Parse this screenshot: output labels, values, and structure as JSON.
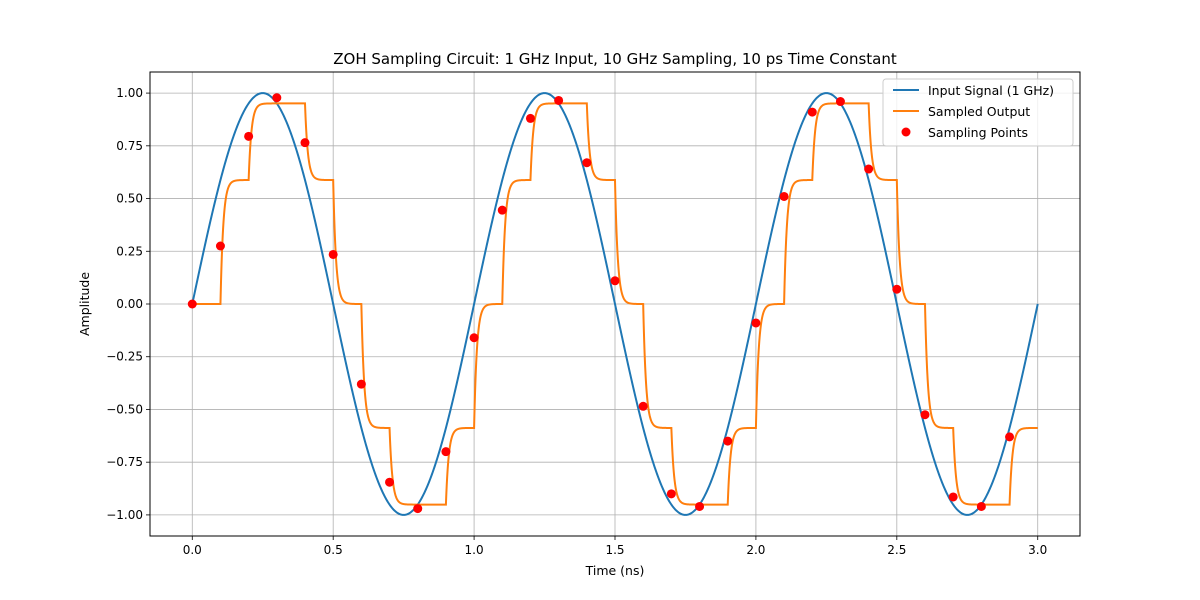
{
  "chart_data": {
    "type": "line",
    "title": "ZOH Sampling Circuit: 1 GHz Input, 10 GHz Sampling, 10 ps Time Constant",
    "xlabel": "Time (ns)",
    "ylabel": "Amplitude",
    "xlim": [
      -0.15,
      3.15
    ],
    "ylim": [
      -1.1,
      1.1
    ],
    "xticks": [
      "0.0",
      "0.5",
      "1.0",
      "1.5",
      "2.0",
      "2.5",
      "3.0"
    ],
    "xtick_values": [
      0,
      0.5,
      1.0,
      1.5,
      2.0,
      2.5,
      3.0
    ],
    "yticks": [
      "−1.00",
      "−0.75",
      "−0.50",
      "−0.25",
      "0.00",
      "0.25",
      "0.50",
      "0.75",
      "1.00"
    ],
    "ytick_values": [
      -1.0,
      -0.75,
      -0.5,
      -0.25,
      0,
      0.25,
      0.5,
      0.75,
      1.0
    ],
    "grid": true,
    "legend_position": "top-right",
    "series": [
      {
        "name": "Input Signal (1 GHz)",
        "kind": "line",
        "color": "#1f77b4",
        "frequency_ghz": 1,
        "amplitude": 1,
        "x_range": [
          0,
          3
        ]
      },
      {
        "name": "Sampled Output",
        "kind": "step-response",
        "color": "#ff7f0e",
        "sample_period_ns": 0.1,
        "time_constant_ns": 0.01,
        "x_range": [
          0,
          3
        ]
      },
      {
        "name": "Sampling Points",
        "kind": "scatter",
        "color": "#ff0000",
        "x": [
          0.0,
          0.1,
          0.2,
          0.3,
          0.4,
          0.5,
          0.6,
          0.7,
          0.8,
          0.9,
          1.0,
          1.1,
          1.2,
          1.3,
          1.4,
          1.5,
          1.6,
          1.7,
          1.8,
          1.9,
          2.0,
          2.1,
          2.2,
          2.3,
          2.4,
          2.5,
          2.6,
          2.7,
          2.8,
          2.9
        ],
        "y": [
          0.0,
          0.275,
          0.795,
          0.978,
          0.765,
          0.235,
          -0.38,
          -0.845,
          -0.97,
          -0.7,
          -0.16,
          0.445,
          0.88,
          0.965,
          0.67,
          0.11,
          -0.485,
          -0.9,
          -0.96,
          -0.65,
          -0.09,
          0.51,
          0.91,
          0.96,
          0.64,
          0.07,
          -0.525,
          -0.915,
          -0.96,
          -0.63
        ]
      }
    ]
  }
}
